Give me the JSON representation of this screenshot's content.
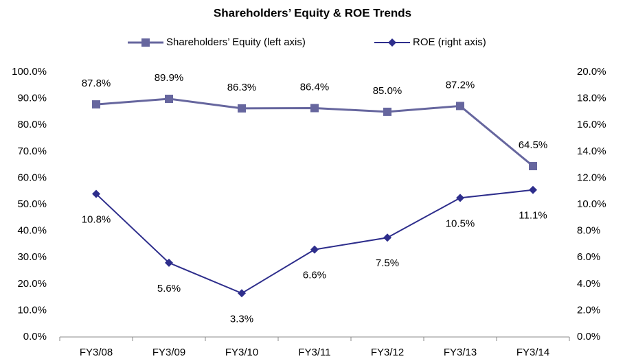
{
  "chart_data": {
    "type": "line",
    "title": "Shareholders’ Equity & ROE Trends",
    "categories": [
      "FY3/08",
      "FY3/09",
      "FY3/10",
      "FY3/11",
      "FY3/12",
      "FY3/13",
      "FY3/14"
    ],
    "series": [
      {
        "name": "Shareholders’ Equity (left axis)",
        "color": "#66669e",
        "marker": "square",
        "values": [
          87.8,
          89.9,
          86.3,
          86.4,
          85.0,
          87.2,
          64.5
        ],
        "value_labels": [
          "87.8%",
          "89.9%",
          "86.3%",
          "86.4%",
          "85.0%",
          "87.2%",
          "64.5%"
        ]
      },
      {
        "name": "ROE (right axis)",
        "color": "#2e2e8c",
        "marker": "diamond",
        "axis": "y2",
        "values": [
          10.8,
          5.6,
          3.3,
          6.6,
          7.5,
          10.5,
          11.1
        ],
        "value_labels": [
          "10.8%",
          "5.6%",
          "3.3%",
          "6.6%",
          "7.5%",
          "10.5%",
          "11.1%"
        ]
      }
    ],
    "ylim": [
      0,
      100
    ],
    "yticks": [
      {
        "value": 0,
        "label": "0.0%"
      },
      {
        "value": 10,
        "label": "10.0%"
      },
      {
        "value": 20,
        "label": "20.0%"
      },
      {
        "value": 30,
        "label": "30.0%"
      },
      {
        "value": 40,
        "label": "40.0%"
      },
      {
        "value": 50,
        "label": "50.0%"
      },
      {
        "value": 60,
        "label": "60.0%"
      },
      {
        "value": 70,
        "label": "70.0%"
      },
      {
        "value": 80,
        "label": "80.0%"
      },
      {
        "value": 90,
        "label": "90.0%"
      },
      {
        "value": 100,
        "label": "100.0%"
      }
    ],
    "y2lim": [
      0,
      20
    ],
    "y2ticks": [
      {
        "value": 0,
        "label": "0.0%"
      },
      {
        "value": 2,
        "label": "2.0%"
      },
      {
        "value": 4,
        "label": "4.0%"
      },
      {
        "value": 6,
        "label": "6.0%"
      },
      {
        "value": 8,
        "label": "8.0%"
      },
      {
        "value": 10,
        "label": "10.0%"
      },
      {
        "value": 12,
        "label": "12.0%"
      },
      {
        "value": 14,
        "label": "14.0%"
      },
      {
        "value": 16,
        "label": "16.0%"
      },
      {
        "value": 18,
        "label": "18.0%"
      },
      {
        "value": 20,
        "label": "20.0%"
      }
    ],
    "grid": false,
    "legend": "top"
  }
}
